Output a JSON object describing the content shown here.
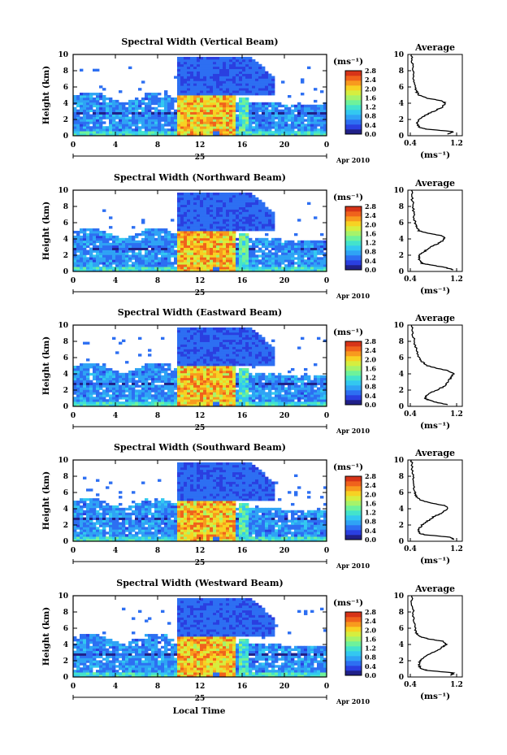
{
  "figure": {
    "xlabel": "Local Time",
    "colors": {
      "colormap": [
        "#202088",
        "#2a3fe0",
        "#2d6ff2",
        "#2fa3f5",
        "#33c8f0",
        "#43e3cc",
        "#6ef29b",
        "#a6f36a",
        "#d6ee3f",
        "#f7d223",
        "#f89a1e",
        "#f0621c",
        "#d73418",
        "#ffffff"
      ]
    }
  },
  "chart_data": [
    {
      "type": "heatmap",
      "title": "Spectral Width (Vertical Beam)",
      "ylabel": "Height (km)",
      "y_ticks": [
        "0",
        "2",
        "4",
        "6",
        "8",
        "10"
      ],
      "ylim": [
        0,
        10
      ],
      "x_ticks": [
        "0",
        "4",
        "8",
        "12",
        "16",
        "20",
        "0"
      ],
      "xlim": [
        0,
        24
      ],
      "date_day": "25",
      "date_label": "Apr 2010",
      "colorbar": {
        "unit": "(ms⁻¹)",
        "ticks": [
          "2.8",
          "2.4",
          "2.0",
          "1.6",
          "1.2",
          "0.8",
          "0.4",
          "0.0"
        ],
        "range": [
          0,
          2.8
        ]
      },
      "avg_plot": {
        "title": "Average",
        "xlabel": "(ms⁻¹)",
        "x_ticks": [
          "0.4",
          "1.2"
        ],
        "xlim": [
          0.4,
          1.2
        ],
        "y_ticks": [
          "0",
          "2",
          "4",
          "6",
          "8",
          "10"
        ],
        "ylim": [
          0,
          10
        ]
      },
      "profile": [
        [
          0.2,
          1.05
        ],
        [
          0.5,
          1.15
        ],
        [
          0.8,
          0.7
        ],
        [
          1.0,
          0.55
        ],
        [
          1.5,
          0.52
        ],
        [
          2.0,
          0.55
        ],
        [
          2.5,
          0.65
        ],
        [
          3.0,
          0.8
        ],
        [
          3.5,
          0.95
        ],
        [
          4.0,
          1.0
        ],
        [
          4.3,
          0.95
        ],
        [
          4.6,
          0.7
        ],
        [
          5.0,
          0.55
        ],
        [
          5.5,
          0.5
        ],
        [
          6.0,
          0.48
        ],
        [
          7.0,
          0.46
        ],
        [
          8.0,
          0.45
        ],
        [
          9.0,
          0.43
        ],
        [
          10.0,
          0.42
        ]
      ]
    },
    {
      "type": "heatmap",
      "title": "Spectral Width (Northward Beam)",
      "ylabel": "Height (km)",
      "y_ticks": [
        "0",
        "2",
        "4",
        "6",
        "8",
        "10"
      ],
      "ylim": [
        0,
        10
      ],
      "x_ticks": [
        "0",
        "4",
        "8",
        "12",
        "16",
        "20",
        "0"
      ],
      "xlim": [
        0,
        24
      ],
      "date_day": "25",
      "date_label": "Apr 2010",
      "colorbar": {
        "unit": "(ms⁻¹)",
        "ticks": [
          "2.8",
          "2.4",
          "2.0",
          "1.6",
          "1.2",
          "0.8",
          "0.4",
          "0.0"
        ],
        "range": [
          0,
          2.8
        ]
      },
      "avg_plot": {
        "title": "Average",
        "xlabel": "(ms⁻¹)",
        "x_ticks": [
          "0.4",
          "1.2"
        ],
        "xlim": [
          0.4,
          1.2
        ],
        "y_ticks": [
          "0",
          "2",
          "4",
          "6",
          "8",
          "10"
        ],
        "ylim": [
          0,
          10
        ]
      },
      "profile": [
        [
          0.2,
          1.15
        ],
        [
          0.5,
          1.0
        ],
        [
          0.8,
          0.75
        ],
        [
          1.0,
          0.6
        ],
        [
          1.5,
          0.55
        ],
        [
          2.0,
          0.55
        ],
        [
          2.5,
          0.65
        ],
        [
          3.0,
          0.75
        ],
        [
          3.5,
          0.9
        ],
        [
          4.0,
          1.0
        ],
        [
          4.4,
          0.95
        ],
        [
          4.7,
          0.7
        ],
        [
          5.0,
          0.55
        ],
        [
          5.5,
          0.5
        ],
        [
          6.0,
          0.48
        ],
        [
          7.0,
          0.46
        ],
        [
          8.0,
          0.45
        ],
        [
          9.0,
          0.43
        ],
        [
          10.0,
          0.42
        ]
      ]
    },
    {
      "type": "heatmap",
      "title": "Spectral Width (Eastward Beam)",
      "ylabel": "Height (km)",
      "y_ticks": [
        "0",
        "2",
        "4",
        "6",
        "8",
        "10"
      ],
      "ylim": [
        0,
        10
      ],
      "x_ticks": [
        "0",
        "4",
        "8",
        "12",
        "16",
        "20",
        "0"
      ],
      "xlim": [
        0,
        24
      ],
      "date_day": "25",
      "date_label": "Apr 2010",
      "colorbar": {
        "unit": "(ms⁻¹)",
        "ticks": [
          "2.8",
          "2.4",
          "2.0",
          "1.6",
          "1.2",
          "0.8",
          "0.4",
          "0.0"
        ],
        "range": [
          0,
          2.8
        ]
      },
      "avg_plot": {
        "title": "Average",
        "xlabel": "(ms⁻¹)",
        "x_ticks": [
          "0.4",
          "1.2"
        ],
        "xlim": [
          0.4,
          1.2
        ],
        "y_ticks": [
          "0",
          "2",
          "4",
          "6",
          "8",
          "10"
        ],
        "ylim": [
          0,
          10
        ]
      },
      "profile": [
        [
          0.2,
          1.05
        ],
        [
          0.5,
          0.85
        ],
        [
          0.8,
          0.7
        ],
        [
          1.0,
          0.65
        ],
        [
          1.5,
          0.7
        ],
        [
          2.0,
          0.85
        ],
        [
          2.5,
          1.0
        ],
        [
          3.0,
          1.05
        ],
        [
          3.5,
          1.1
        ],
        [
          4.0,
          1.15
        ],
        [
          4.4,
          1.05
        ],
        [
          4.7,
          0.85
        ],
        [
          5.0,
          0.7
        ],
        [
          5.5,
          0.6
        ],
        [
          6.0,
          0.55
        ],
        [
          7.0,
          0.5
        ],
        [
          8.0,
          0.47
        ],
        [
          9.0,
          0.44
        ],
        [
          10.0,
          0.42
        ]
      ]
    },
    {
      "type": "heatmap",
      "title": "Spectral Width (Southward Beam)",
      "ylabel": "Height (km)",
      "y_ticks": [
        "0",
        "2",
        "4",
        "6",
        "8",
        "10"
      ],
      "ylim": [
        0,
        10
      ],
      "x_ticks": [
        "0",
        "4",
        "8",
        "12",
        "16",
        "20",
        "0"
      ],
      "xlim": [
        0,
        24
      ],
      "date_day": "25",
      "date_label": "Apr 2010",
      "colorbar": {
        "unit": "(ms⁻¹)",
        "ticks": [
          "2.8",
          "2.4",
          "2.0",
          "1.6",
          "1.2",
          "0.8",
          "0.4",
          "0.0"
        ],
        "range": [
          0,
          2.8
        ]
      },
      "avg_plot": {
        "title": "Average",
        "xlabel": "(ms⁻¹)",
        "x_ticks": [
          "0.4",
          "1.2"
        ],
        "xlim": [
          0.4,
          1.2
        ],
        "y_ticks": [
          "0",
          "2",
          "4",
          "6",
          "8",
          "10"
        ],
        "ylim": [
          0,
          10
        ]
      },
      "profile": [
        [
          0.2,
          1.15
        ],
        [
          0.5,
          1.1
        ],
        [
          0.8,
          0.65
        ],
        [
          1.0,
          0.55
        ],
        [
          1.5,
          0.55
        ],
        [
          2.0,
          0.6
        ],
        [
          2.5,
          0.7
        ],
        [
          3.0,
          0.8
        ],
        [
          3.5,
          0.95
        ],
        [
          4.0,
          1.05
        ],
        [
          4.4,
          1.0
        ],
        [
          4.7,
          0.75
        ],
        [
          5.0,
          0.6
        ],
        [
          5.5,
          0.5
        ],
        [
          6.0,
          0.48
        ],
        [
          7.0,
          0.46
        ],
        [
          8.0,
          0.45
        ],
        [
          9.0,
          0.43
        ],
        [
          10.0,
          0.42
        ]
      ]
    },
    {
      "type": "heatmap",
      "title": "Spectral Width (Westward Beam)",
      "ylabel": "Height (km)",
      "y_ticks": [
        "0",
        "2",
        "4",
        "6",
        "8",
        "10"
      ],
      "ylim": [
        0,
        10
      ],
      "x_ticks": [
        "0",
        "4",
        "8",
        "12",
        "16",
        "20",
        "0"
      ],
      "xlim": [
        0,
        24
      ],
      "date_day": "25",
      "date_label": "Apr 2010",
      "colorbar": {
        "unit": "(ms⁻¹)",
        "ticks": [
          "2.8",
          "2.4",
          "2.0",
          "1.6",
          "1.2",
          "0.8",
          "0.4",
          "0.0"
        ],
        "range": [
          0,
          2.8
        ]
      },
      "avg_plot": {
        "title": "Average",
        "xlabel": "(ms⁻¹)",
        "x_ticks": [
          "0.4",
          "1.2"
        ],
        "xlim": [
          0.4,
          1.2
        ],
        "y_ticks": [
          "0",
          "2",
          "4",
          "6",
          "8",
          "10"
        ],
        "ylim": [
          0,
          10
        ]
      },
      "profile": [
        [
          0.2,
          1.1
        ],
        [
          0.5,
          1.15
        ],
        [
          0.8,
          0.7
        ],
        [
          1.0,
          0.58
        ],
        [
          1.5,
          0.55
        ],
        [
          2.0,
          0.57
        ],
        [
          2.5,
          0.65
        ],
        [
          3.0,
          0.78
        ],
        [
          3.5,
          0.92
        ],
        [
          4.0,
          1.02
        ],
        [
          4.4,
          0.97
        ],
        [
          4.7,
          0.7
        ],
        [
          5.0,
          0.55
        ],
        [
          5.5,
          0.5
        ],
        [
          6.0,
          0.48
        ],
        [
          7.0,
          0.46
        ],
        [
          8.0,
          0.45
        ],
        [
          9.0,
          0.43
        ],
        [
          10.0,
          0.42
        ]
      ]
    }
  ]
}
